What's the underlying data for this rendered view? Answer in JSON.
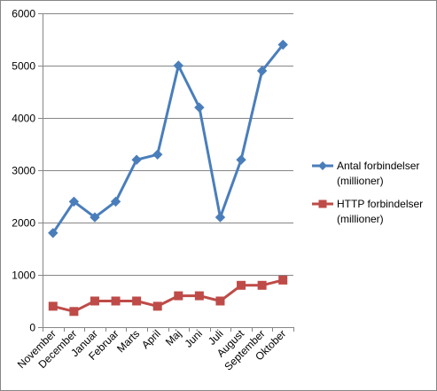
{
  "chart_data": {
    "type": "line",
    "title": "",
    "xlabel": "",
    "ylabel": "",
    "categories": [
      "November",
      "December",
      "Januar",
      "Februar",
      "Marts",
      "April",
      "Maj",
      "Juni",
      "Juli",
      "August",
      "September",
      "Oktober"
    ],
    "ylim": [
      0,
      6000
    ],
    "yticks": [
      "0",
      "1000",
      "2000",
      "3000",
      "4000",
      "5000",
      "6000"
    ],
    "grid": true,
    "legend_position": "right",
    "series": [
      {
        "name_lines": [
          "Antal forbindelser",
          "(millioner)"
        ],
        "color": "#4A7EBB",
        "marker": "diamond",
        "values": [
          1800,
          2400,
          2100,
          2400,
          3200,
          3300,
          5000,
          4200,
          2100,
          3200,
          4900,
          5400
        ]
      },
      {
        "name_lines": [
          "HTTP forbindelser",
          "(millioner)"
        ],
        "color": "#BE4B48",
        "marker": "square",
        "values": [
          400,
          300,
          500,
          500,
          500,
          400,
          600,
          600,
          500,
          800,
          800,
          900
        ]
      }
    ]
  }
}
